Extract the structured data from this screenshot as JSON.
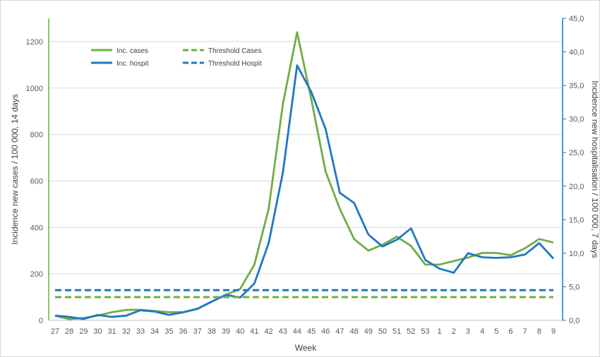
{
  "chart_data": {
    "type": "line",
    "title": "",
    "xlabel": "Week",
    "ylabel_left": "Incidence new cases / 100 000, 14 days",
    "ylabel_right": "Incidence new hospitalisation / 100 000, 7 days",
    "categories": [
      "27",
      "28",
      "29",
      "30",
      "31",
      "32",
      "33",
      "34",
      "35",
      "36",
      "37",
      "38",
      "39",
      "40",
      "41",
      "42",
      "43",
      "44",
      "45",
      "46",
      "47",
      "48",
      "49",
      "50",
      "51",
      "52",
      "53",
      "1",
      "2",
      "3",
      "4",
      "5",
      "6",
      "7",
      "8",
      "9"
    ],
    "ylim_left": [
      0,
      1300
    ],
    "yticks_left": [
      "0",
      "200",
      "400",
      "600",
      "800",
      "1000",
      "1200"
    ],
    "ylim_right": [
      0,
      45
    ],
    "yticks_right": [
      "0,0",
      "5,0",
      "10,0",
      "15,0",
      "20,0",
      "25,0",
      "30,0",
      "35,0",
      "40,0",
      "45,0"
    ],
    "grid": true,
    "legend_position": "top-left",
    "series": [
      {
        "name": "Inc. cases",
        "axis": "left",
        "style": "solid",
        "color": "#70ad47",
        "values": [
          20,
          5,
          10,
          20,
          35,
          45,
          45,
          40,
          35,
          35,
          50,
          80,
          110,
          135,
          240,
          480,
          930,
          1240,
          950,
          640,
          480,
          350,
          300,
          325,
          360,
          320,
          240,
          240,
          255,
          270,
          290,
          290,
          280,
          310,
          350,
          335
        ]
      },
      {
        "name": "Inc. hospit",
        "axis": "right",
        "style": "solid",
        "color": "#1f77c4",
        "values": [
          0.7,
          0.5,
          0.2,
          0.8,
          0.5,
          0.7,
          1.5,
          1.3,
          0.8,
          1.2,
          1.7,
          2.8,
          3.8,
          3.4,
          5.5,
          11.5,
          22.0,
          38.0,
          34.0,
          28.5,
          19.0,
          17.5,
          12.8,
          11.0,
          12.0,
          13.7,
          9.0,
          7.7,
          7.1,
          10.0,
          9.4,
          9.3,
          9.4,
          9.8,
          11.5,
          9.2
        ]
      },
      {
        "name": "Threshold Cases",
        "axis": "left",
        "style": "dashed",
        "color": "#70ad47",
        "values": [
          100,
          100,
          100,
          100,
          100,
          100,
          100,
          100,
          100,
          100,
          100,
          100,
          100,
          100,
          100,
          100,
          100,
          100,
          100,
          100,
          100,
          100,
          100,
          100,
          100,
          100,
          100,
          100,
          100,
          100,
          100,
          100,
          100,
          100,
          100,
          100
        ]
      },
      {
        "name": "Threshold Hospit",
        "axis": "right",
        "style": "dashed",
        "color": "#1f77c4",
        "values": [
          4.5,
          4.5,
          4.5,
          4.5,
          4.5,
          4.5,
          4.5,
          4.5,
          4.5,
          4.5,
          4.5,
          4.5,
          4.5,
          4.5,
          4.5,
          4.5,
          4.5,
          4.5,
          4.5,
          4.5,
          4.5,
          4.5,
          4.5,
          4.5,
          4.5,
          4.5,
          4.5,
          4.5,
          4.5,
          4.5,
          4.5,
          4.5,
          4.5,
          4.5,
          4.5,
          4.5
        ]
      }
    ],
    "legend_order": [
      "Inc. cases",
      "Threshold Cases",
      "Inc. hospit",
      "Threshold Hospit"
    ]
  }
}
